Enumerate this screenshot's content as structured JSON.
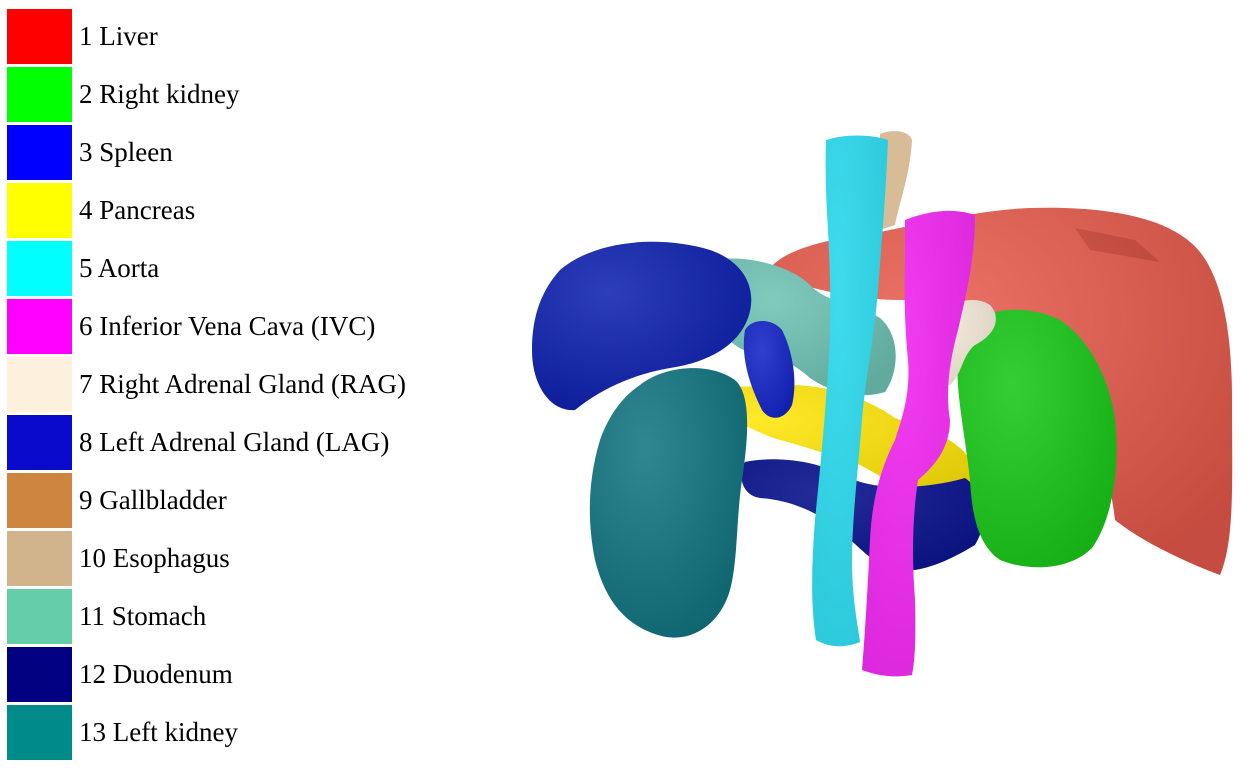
{
  "legend": {
    "items": [
      {
        "label": "1 Liver",
        "color": "#ff0000"
      },
      {
        "label": "2 Right kidney",
        "color": "#00ff00"
      },
      {
        "label": "3 Spleen",
        "color": "#0000ff"
      },
      {
        "label": "4 Pancreas",
        "color": "#ffff00"
      },
      {
        "label": "5 Aorta",
        "color": "#00ffff"
      },
      {
        "label": "6 Inferior Vena Cava (IVC)",
        "color": "#ff00ff"
      },
      {
        "label": "7 Right Adrenal Gland (RAG)",
        "color": "#fdf0dc"
      },
      {
        "label": "8 Left Adrenal Gland (LAG)",
        "color": "#0a0acc"
      },
      {
        "label": "9 Gallbladder",
        "color": "#cd853f"
      },
      {
        "label": "10 Esophagus",
        "color": "#d2b48c"
      },
      {
        "label": "11 Stomach",
        "color": "#66cdaa"
      },
      {
        "label": "12 Duodenum",
        "color": "#000080"
      },
      {
        "label": "13 Left kidney",
        "color": "#008b8b"
      }
    ]
  },
  "render_colors": {
    "liver": "#e85a4b",
    "liver_shadow": "#c43a2e",
    "right_kidney": "#18c818",
    "spleen": "#0c1fb0",
    "pancreas": "#ffe60a",
    "aorta": "#2fd8ec",
    "ivc": "#f02af0",
    "rag": "#f0e6d6",
    "lag": "#1424c8",
    "esophagus": "#d8bc98",
    "stomach": "#6ec2b4",
    "duodenum": "#0a148c",
    "left_kidney": "#0f7480"
  }
}
